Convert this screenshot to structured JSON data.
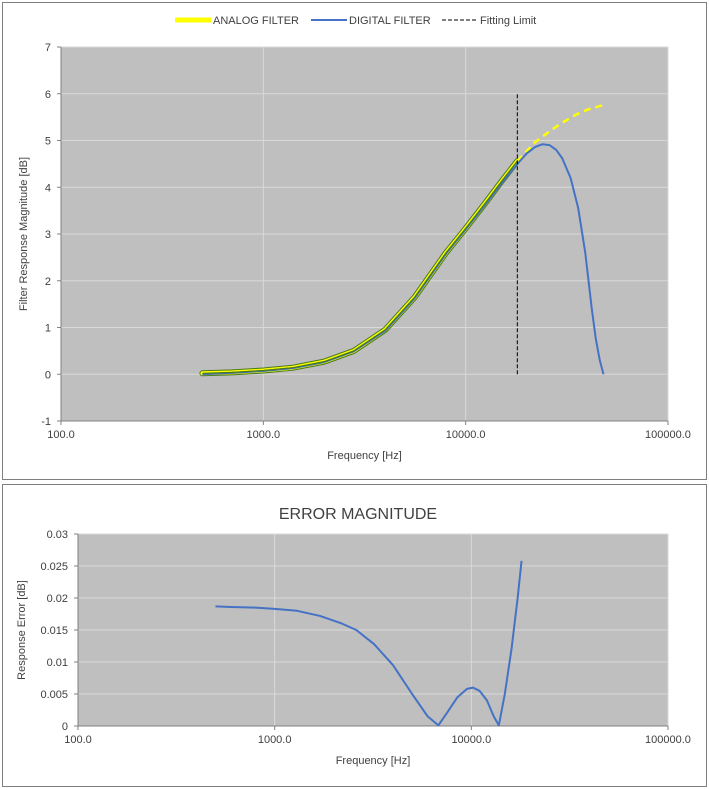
{
  "colors": {
    "plot_area": "#bfbfbf",
    "grid": "#d9d9d9",
    "analog": "#ffff00",
    "analog_edge": "#4a7a1a",
    "digital": "#4472c4",
    "fitting_limit": "#000000"
  },
  "chart_data": [
    {
      "type": "line",
      "title": "",
      "xlabel": "Frequency [Hz]",
      "ylabel": "Filter Response Magnitude [dB]",
      "xscale": "log",
      "xlim": [
        100,
        100000
      ],
      "ylim": [
        -1,
        7
      ],
      "xticks": [
        "100.0",
        "1000.0",
        "10000.0",
        "100000.0"
      ],
      "yticks": [
        "-1",
        "0",
        "1",
        "2",
        "3",
        "4",
        "5",
        "6",
        "7"
      ],
      "grid": true,
      "legend_position": "top",
      "legend": [
        "ANALOG FILTER",
        "DIGITAL FILTER",
        "Fitting Limit"
      ],
      "series": [
        {
          "name": "ANALOG FILTER",
          "style": "solid-then-dashed",
          "x": [
            500,
            700,
            1000,
            1400,
            2000,
            2800,
            4000,
            5600,
            8000,
            10000,
            12500,
            15000,
            18000,
            22000,
            26000,
            30000,
            35000,
            40000,
            48000
          ],
          "y": [
            0.02,
            0.04,
            0.08,
            0.14,
            0.27,
            0.5,
            0.95,
            1.65,
            2.6,
            3.12,
            3.66,
            4.12,
            4.56,
            4.96,
            5.2,
            5.38,
            5.55,
            5.66,
            5.76
          ]
        },
        {
          "name": "DIGITAL FILTER",
          "style": "solid",
          "x": [
            500,
            700,
            1000,
            1400,
            2000,
            2800,
            4000,
            5600,
            8000,
            10000,
            12500,
            15000,
            18000,
            20000,
            22000,
            24000,
            26000,
            28000,
            30000,
            33000,
            36000,
            39000,
            42000,
            44000,
            46000,
            48000
          ],
          "y": [
            0.0,
            0.03,
            0.07,
            0.13,
            0.26,
            0.49,
            0.93,
            1.63,
            2.58,
            3.1,
            3.63,
            4.08,
            4.5,
            4.72,
            4.86,
            4.92,
            4.9,
            4.8,
            4.62,
            4.2,
            3.55,
            2.6,
            1.4,
            0.75,
            0.3,
            0.0
          ]
        },
        {
          "name": "Fitting Limit",
          "style": "dashed",
          "x": [
            18000,
            18000
          ],
          "y": [
            0,
            6
          ]
        }
      ]
    },
    {
      "type": "line",
      "title": "ERROR MAGNITUDE",
      "xlabel": "Frequency [Hz]",
      "ylabel": "Response Error [dB]",
      "xscale": "log",
      "xlim": [
        100,
        100000
      ],
      "ylim": [
        0,
        0.03
      ],
      "xticks": [
        "100.0",
        "1000.0",
        "10000.0",
        "100000.0"
      ],
      "yticks": [
        "0",
        "0.005",
        "0.01",
        "0.015",
        "0.02",
        "0.025",
        "0.03"
      ],
      "grid": true,
      "series": [
        {
          "style": "solid",
          "x": [
            500,
            600,
            800,
            1000,
            1300,
            1700,
            2200,
            2600,
            3200,
            4000,
            5000,
            6000,
            6800,
            7500,
            8500,
            9500,
            10200,
            11000,
            12000,
            13000,
            13800,
            14800,
            16000,
            17200,
            18000
          ],
          "y": [
            0.0187,
            0.0186,
            0.0185,
            0.0183,
            0.018,
            0.0172,
            0.016,
            0.015,
            0.0128,
            0.0095,
            0.005,
            0.0015,
            0.0001,
            0.002,
            0.0045,
            0.0058,
            0.006,
            0.0055,
            0.004,
            0.0015,
            0.0001,
            0.005,
            0.012,
            0.02,
            0.0258
          ]
        }
      ]
    }
  ]
}
